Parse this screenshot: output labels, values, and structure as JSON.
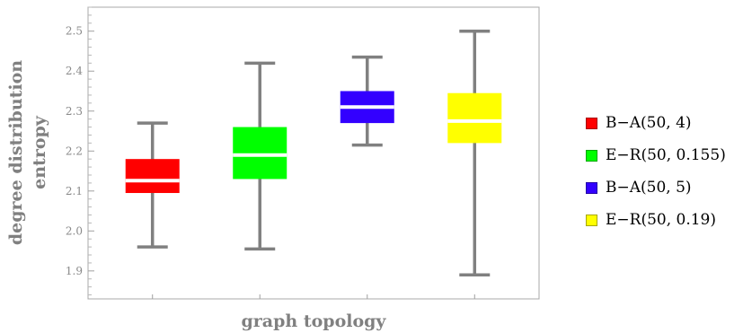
{
  "chart_data": {
    "type": "box",
    "xlabel": "graph topology",
    "ylabel_lines": [
      "degree distribution",
      "entropy"
    ],
    "ylim": [
      1.83,
      2.56
    ],
    "yticks": [
      "1.9",
      "2.0",
      "2.1",
      "2.2",
      "2.3",
      "2.4",
      "2.5"
    ],
    "grid": false,
    "legend_position": "right",
    "series": [
      {
        "name": "B−A(50, 4)",
        "color": "#ff0000",
        "min": 1.96,
        "q1": 2.095,
        "median": 2.126,
        "q3": 2.18,
        "max": 2.27
      },
      {
        "name": "E−R(50, 0.155)",
        "color": "#00ff00",
        "min": 1.955,
        "q1": 2.13,
        "median": 2.19,
        "q3": 2.26,
        "max": 2.42
      },
      {
        "name": "B−A(50, 5)",
        "color": "#3300ff",
        "min": 2.215,
        "q1": 2.27,
        "median": 2.31,
        "q3": 2.35,
        "max": 2.435
      },
      {
        "name": "E−R(50, 0.19)",
        "color": "#ffff00",
        "min": 1.89,
        "q1": 2.22,
        "median": 2.275,
        "q3": 2.345,
        "max": 2.5
      }
    ]
  }
}
